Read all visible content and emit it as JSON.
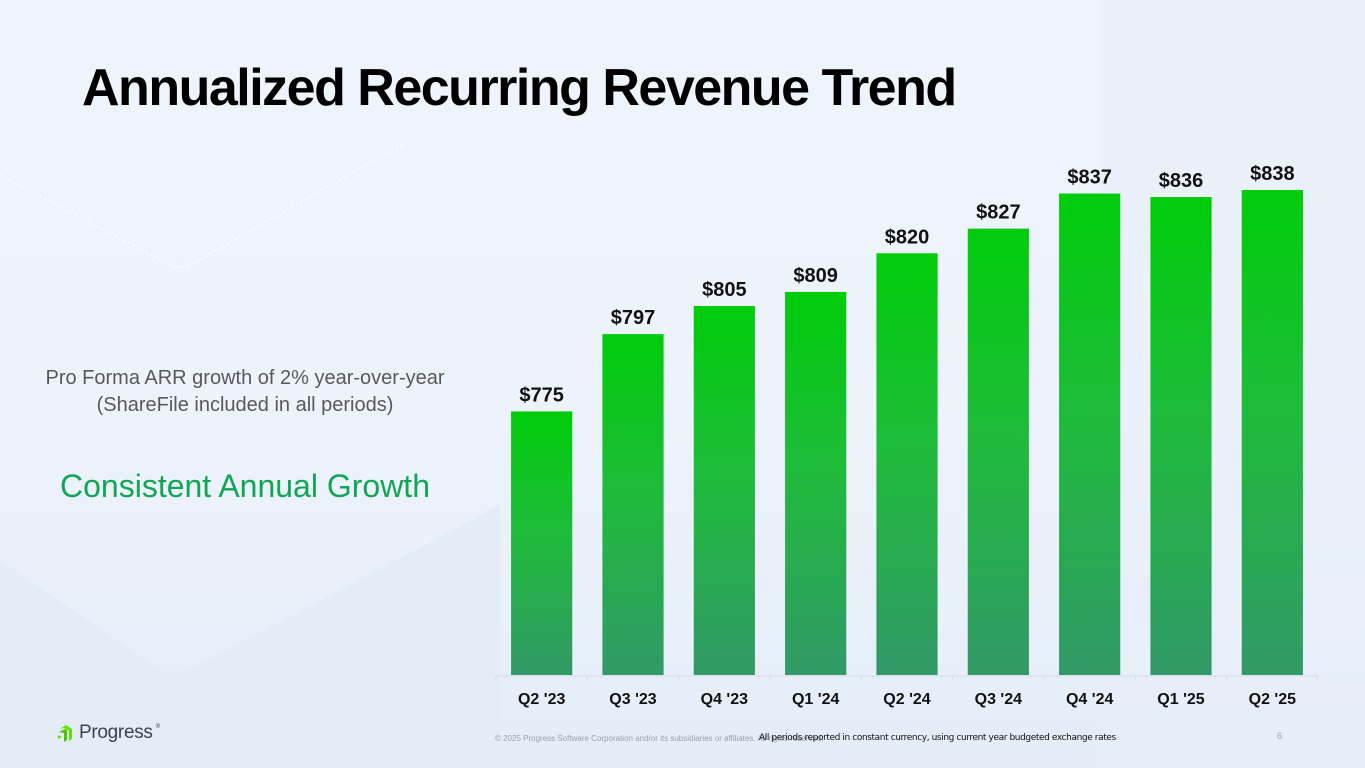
{
  "slide": {
    "title": "Annualized Recurring Revenue Trend",
    "side_note": "Pro Forma ARR growth of 2% year-over-year (ShareFile included in all periods)",
    "callout": "Consistent Annual Growth",
    "footer": {
      "logo_text": "Progress",
      "logo_mark": "®",
      "copyright": "© 2025 Progress Software Corporation and/or its subsidiaries or affiliates. All rights reserved.",
      "footnote": "All periods reported in constant currency, using current year budgeted exchange rates",
      "page_number": "6"
    }
  },
  "colors": {
    "bar_top": "#00cc0a",
    "bar_bottom": "#329968",
    "callout": "#11a653",
    "logo_green": "#5ce500"
  },
  "chart_data": {
    "type": "bar",
    "title": "Annualized Recurring Revenue Trend",
    "xlabel": "",
    "ylabel": "",
    "categories": [
      "Q2 '23",
      "Q3 '23",
      "Q4 '23",
      "Q1 '24",
      "Q2 '24",
      "Q3 '24",
      "Q4 '24",
      "Q1 '25",
      "Q2 '25"
    ],
    "values": [
      775,
      797,
      805,
      809,
      820,
      827,
      837,
      836,
      838
    ],
    "data_labels": [
      "$775",
      "$797",
      "$805",
      "$809",
      "$820",
      "$827",
      "$837",
      "$836",
      "$838"
    ],
    "ylim": [
      700,
      850
    ],
    "grid": false,
    "legend": "none"
  }
}
